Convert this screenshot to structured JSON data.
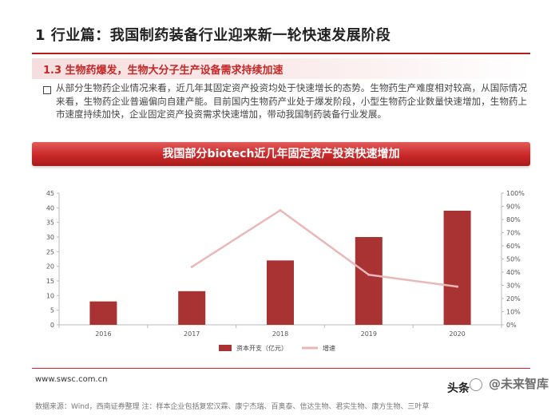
{
  "header": {
    "title": "1 行业篇：我国制药装备行业迎来新一轮快速发展阶段",
    "section": "1.3  生物药爆发，生物大分子生产设备需求持续加速"
  },
  "body_text": "从部分生物药企业情况来看，近几年其固定资产投资均处于快速增长的态势。生物药生产难度相对较高，从国际情况来看，生物药企业普遍偏向自建产能。目前国内生物药产业处于爆发阶段，小型生物药企业数量快速增加，生物药上市速度持续加快，企业固定资产投资需求快速增加，带动我国制药装备行业发展。",
  "banner": "我国部分biotech近几年固定资产投资快速增加",
  "footer": {
    "url": "www.swsc.com.cn",
    "source": "数据来源：Wind，西南证券整理  注：样本企业包括复宏汉霖、康宁杰瑞、百奥泰、信达生物、君实生物、康方生物、三叶草",
    "watermark": "头条",
    "watermark_brand": "@未来智库"
  },
  "chart_data": {
    "type": "bar",
    "categories": [
      "2016",
      "2017",
      "2018",
      "2019",
      "2020"
    ],
    "series": [
      {
        "name": "资本开支（亿元）",
        "type": "bar",
        "axis": "left",
        "values": [
          8,
          11.5,
          22,
          30,
          39
        ],
        "color": "#a93232"
      },
      {
        "name": "增速",
        "type": "line",
        "axis": "right",
        "values": [
          null,
          44,
          87,
          38,
          29
        ],
        "color": "#eab7b9"
      }
    ],
    "y_left": {
      "min": 0,
      "max": 45,
      "ticks": [
        "0",
        "5",
        "10",
        "15",
        "20",
        "25",
        "30",
        "35",
        "40",
        "45"
      ]
    },
    "y_right": {
      "min": 0,
      "max": 100,
      "ticks": [
        "0%",
        "10%",
        "20%",
        "30%",
        "40%",
        "50%",
        "60%",
        "70%",
        "80%",
        "90%",
        "100%"
      ]
    },
    "legend_position": "bottom",
    "grid": false
  }
}
